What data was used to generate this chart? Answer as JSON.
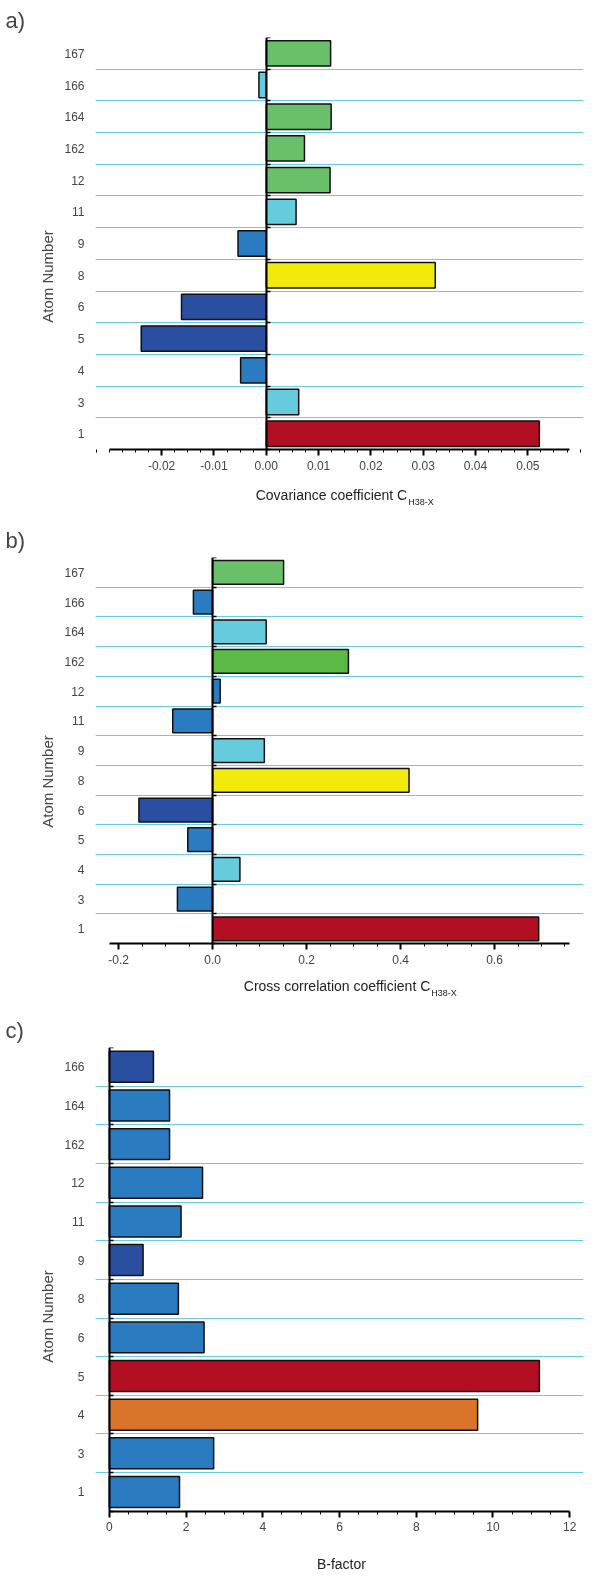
{
  "chart_data": [
    {
      "type": "bar",
      "orientation": "horizontal",
      "title": "a)",
      "ylabel": "Atom Number",
      "xlabel": "Covariance coefficient C$_{H38-X}$",
      "categories": [
        "167",
        "166",
        "164",
        "162",
        "12",
        "11",
        "9",
        "8",
        "6",
        "5",
        "4",
        "3",
        "1"
      ],
      "values": [
        0.0123,
        -0.0014,
        0.0124,
        0.0073,
        0.0122,
        0.0057,
        -0.0054,
        0.0323,
        -0.0162,
        -0.0239,
        -0.0049,
        0.0062,
        0.0522
      ],
      "colors": [
        "#6abf69",
        "#66cbdd",
        "#6abf69",
        "#6abf69",
        "#6abf69",
        "#66cbdd",
        "#2a7bbf",
        "#f2ea0a",
        "#2a4fa0",
        "#2a4fa0",
        "#2a7bbf",
        "#66cbdd",
        "#b30f22"
      ],
      "xlim": [
        -0.03,
        0.058
      ],
      "xticks": [
        {
          "value": -0.02,
          "label": "-0.02"
        },
        {
          "value": -0.01,
          "label": "-0.01"
        },
        {
          "value": 0,
          "label": "0.00"
        },
        {
          "value": 0.01,
          "label": "0.01"
        },
        {
          "value": 0.02,
          "label": "0.02"
        },
        {
          "value": 0.03,
          "label": "0.03"
        },
        {
          "value": 0.04,
          "label": "0.04"
        },
        {
          "value": 0.05,
          "label": "0.05"
        }
      ],
      "grid": "y"
    },
    {
      "type": "bar",
      "orientation": "horizontal",
      "title": "b)",
      "ylabel": "Atom Number",
      "xlabel": "Cross correlation coefficient C$_{H38-X}$",
      "categories": [
        "167",
        "166",
        "164",
        "162",
        "12",
        "11",
        "9",
        "8",
        "6",
        "5",
        "4",
        "3",
        "1"
      ],
      "values": [
        0.151,
        -0.041,
        0.114,
        0.289,
        0.016,
        -0.085,
        0.11,
        0.418,
        -0.157,
        -0.053,
        0.058,
        -0.075,
        0.694
      ],
      "colors": [
        "#6abf69",
        "#2a7bbf",
        "#66cbdd",
        "#5db946",
        "#2a7bbf",
        "#2a7bbf",
        "#66cbdd",
        "#f2ea0a",
        "#2a4fa0",
        "#2a7bbf",
        "#66cbdd",
        "#2a7bbf",
        "#b30f22"
      ],
      "xlim": [
        -0.22,
        0.76
      ],
      "xticks": [
        -0.2,
        {
          "value": 0,
          "label": "0.0"
        },
        0.2,
        0.4,
        0.6
      ],
      "grid": "y"
    },
    {
      "type": "bar",
      "orientation": "horizontal",
      "title": "c)",
      "ylabel": "Atom Number",
      "xlabel": "B-factor",
      "categories": [
        "166",
        "164",
        "162",
        "12",
        "11",
        "9",
        "8",
        "6",
        "5",
        "4",
        "3",
        "1"
      ],
      "values": [
        1.15,
        1.57,
        1.57,
        2.43,
        1.87,
        0.88,
        1.8,
        2.47,
        11.21,
        9.6,
        2.72,
        1.83
      ],
      "colors": [
        "#2a4fa0",
        "#2a7bbf",
        "#2a7bbf",
        "#2a7bbf",
        "#2a7bbf",
        "#2a4fa0",
        "#2a7bbf",
        "#2a7bbf",
        "#b30f22",
        "#d9742a",
        "#2a7bbf",
        "#2a7bbf"
      ],
      "xlim": [
        0,
        12
      ],
      "xticks": [
        0,
        2,
        4,
        6,
        8,
        10,
        12
      ],
      "grid": "y"
    }
  ]
}
